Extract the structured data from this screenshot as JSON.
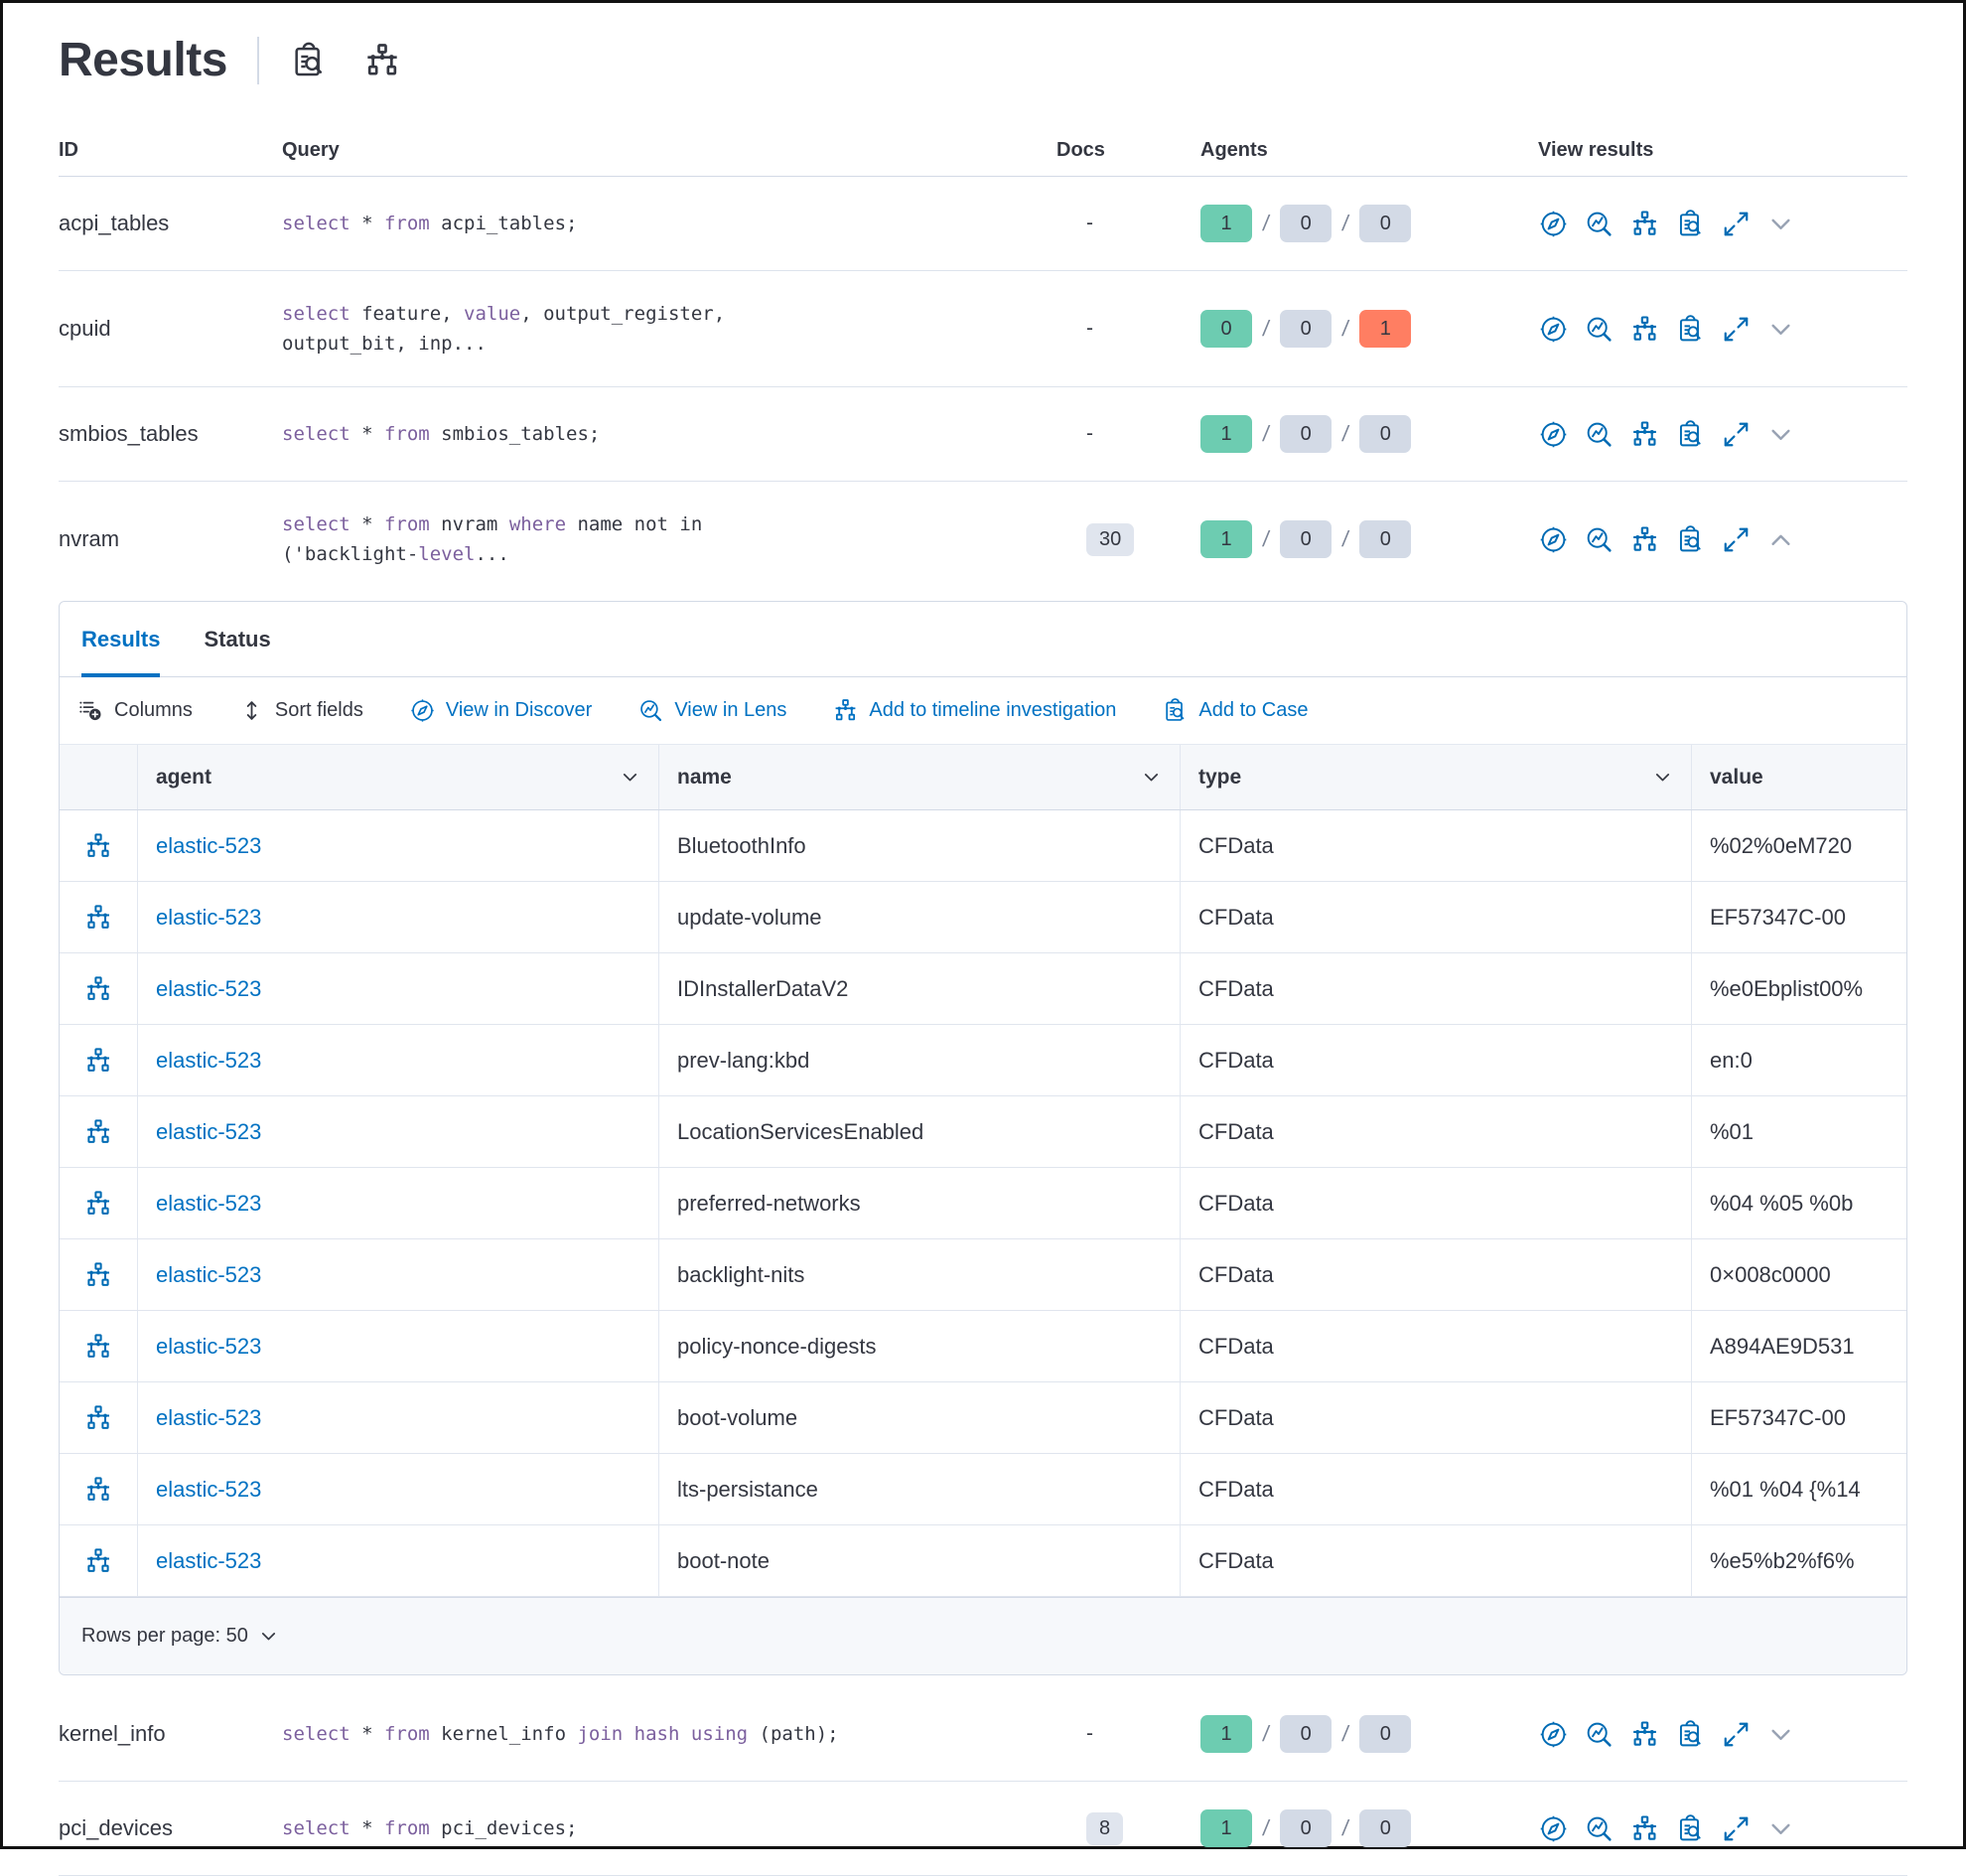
{
  "colors": {
    "accent": "#0071c2",
    "icon_blue": "#006bb4",
    "keyword": "#7c609e",
    "text": "#343741",
    "border": "#d3dae6",
    "badge_success": "#6dccb1",
    "badge_neutral": "#d3dae6",
    "badge_danger": "#ff7e62",
    "docs_pill": "#e0e5ee",
    "header_bg": "#f5f7fa",
    "footer_bg": "#f6f8fb"
  },
  "header": {
    "title": "Results",
    "icons": [
      "clipboard-search-icon",
      "network-diagram-icon"
    ]
  },
  "queries_table": {
    "columns": {
      "id": "ID",
      "query": "Query",
      "docs": "Docs",
      "agents": "Agents",
      "view_results": "View results"
    },
    "sql_keywords": [
      "select",
      "from",
      "where",
      "join",
      "using",
      "value",
      "level",
      "hash"
    ],
    "agents_separator": "/",
    "row_action_icons": [
      "discover-icon",
      "lens-icon",
      "timeline-icon",
      "case-icon",
      "expand-icon",
      "chevron-icon"
    ],
    "rows": [
      {
        "id": "acpi_tables",
        "query_lines": [
          "select * from acpi_tables;"
        ],
        "docs": "-",
        "agents": {
          "success": 1,
          "pending": 0,
          "failed": 0
        },
        "expanded": false
      },
      {
        "id": "cpuid",
        "query_lines": [
          "select feature, value, output_register,",
          "output_bit, inp..."
        ],
        "docs": "-",
        "agents": {
          "success": 0,
          "pending": 0,
          "failed": 1
        },
        "expanded": false
      },
      {
        "id": "smbios_tables",
        "query_lines": [
          "select * from smbios_tables;"
        ],
        "docs": "-",
        "agents": {
          "success": 1,
          "pending": 0,
          "failed": 0
        },
        "expanded": false
      },
      {
        "id": "nvram",
        "query_lines": [
          "select * from nvram where name not in",
          "('backlight-level..."
        ],
        "docs": "30",
        "agents": {
          "success": 1,
          "pending": 0,
          "failed": 0
        },
        "expanded": true
      },
      {
        "id": "kernel_info",
        "query_lines": [
          "select * from kernel_info join hash using (path);"
        ],
        "docs": "-",
        "agents": {
          "success": 1,
          "pending": 0,
          "failed": 0
        },
        "expanded": false
      },
      {
        "id": "pci_devices",
        "query_lines": [
          "select * from pci_devices;"
        ],
        "docs": "8",
        "agents": {
          "success": 1,
          "pending": 0,
          "failed": 0
        },
        "expanded": false
      }
    ]
  },
  "expanded_panel": {
    "tabs": [
      {
        "label": "Results",
        "active": true
      },
      {
        "label": "Status",
        "active": false
      }
    ],
    "toolbar": [
      {
        "label": "Columns",
        "icon": "columns-icon",
        "style": "dark"
      },
      {
        "label": "Sort fields",
        "icon": "sort-icon",
        "style": "dark"
      },
      {
        "label": "View in Discover",
        "icon": "discover-icon",
        "style": "blue"
      },
      {
        "label": "View in Lens",
        "icon": "lens-icon",
        "style": "blue"
      },
      {
        "label": "Add to timeline investigation",
        "icon": "timeline-icon",
        "style": "blue"
      },
      {
        "label": "Add to Case",
        "icon": "case-icon",
        "style": "blue"
      }
    ],
    "results_table": {
      "columns": [
        "agent",
        "name",
        "type",
        "value"
      ],
      "rows": [
        {
          "agent": "elastic-523",
          "name": "BluetoothInfo",
          "type": "CFData",
          "value": "%02%0eM720"
        },
        {
          "agent": "elastic-523",
          "name": "update-volume",
          "type": "CFData",
          "value": "EF57347C-00"
        },
        {
          "agent": "elastic-523",
          "name": "IDInstallerDataV2",
          "type": "CFData",
          "value": "%e0Ebplist00%"
        },
        {
          "agent": "elastic-523",
          "name": "prev-lang:kbd",
          "type": "CFData",
          "value": "en:0"
        },
        {
          "agent": "elastic-523",
          "name": "LocationServicesEnabled",
          "type": "CFData",
          "value": "%01"
        },
        {
          "agent": "elastic-523",
          "name": "preferred-networks",
          "type": "CFData",
          "value": "%04 %05 %0b"
        },
        {
          "agent": "elastic-523",
          "name": "backlight-nits",
          "type": "CFData",
          "value": "0×008c0000"
        },
        {
          "agent": "elastic-523",
          "name": "policy-nonce-digests",
          "type": "CFData",
          "value": "A894AE9D531"
        },
        {
          "agent": "elastic-523",
          "name": "boot-volume",
          "type": "CFData",
          "value": "EF57347C-00"
        },
        {
          "agent": "elastic-523",
          "name": "lts-persistance",
          "type": "CFData",
          "value": "%01 %04 {%14"
        },
        {
          "agent": "elastic-523",
          "name": "boot-note",
          "type": "CFData",
          "value": "%e5%b2%f6%"
        }
      ]
    },
    "footer": {
      "rows_per_page_label": "Rows per page: 50"
    }
  }
}
